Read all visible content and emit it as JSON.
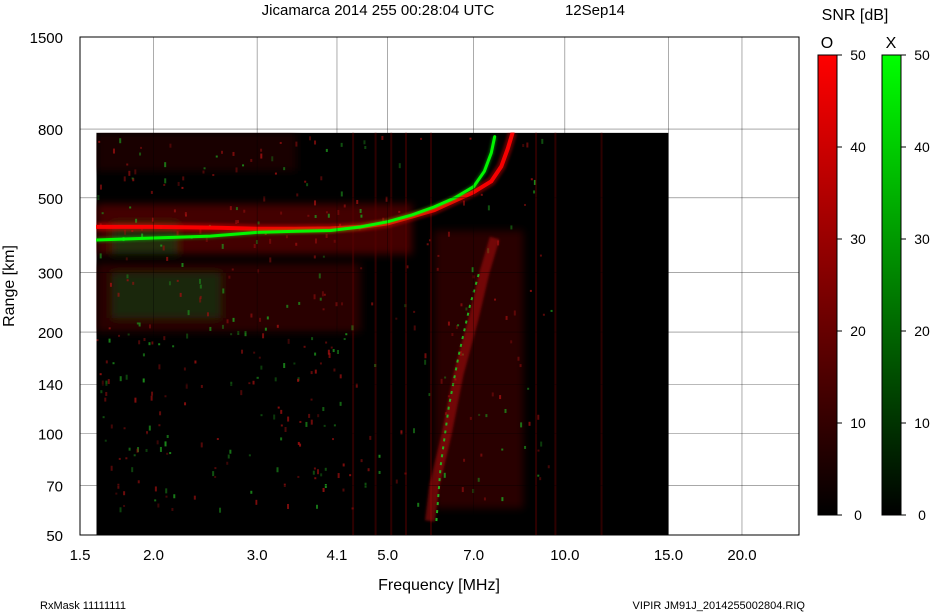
{
  "header": {
    "title": "Jicamarca 2014 255 00:28:04 UTC",
    "date": "12Sep14",
    "snr_label": "SNR [dB]"
  },
  "footer": {
    "rxmask": "RxMask 11111111",
    "file": "VIPIR  JM91J_2014255002804.RIQ"
  },
  "colors": {
    "o_mode": "#ff0000",
    "x_mode": "#00ff00",
    "background": "#000000",
    "grid": "#000000"
  },
  "chart_data": {
    "type": "heatmap",
    "title": "Jicamarca 2014 255 00:28:04 UTC",
    "xlabel": "Frequency [MHz]",
    "ylabel": "Range [km]",
    "x_scale": "log",
    "y_scale": "log",
    "xlim": [
      1.5,
      25
    ],
    "ylim": [
      50,
      1500
    ],
    "x_ticks": [
      "1.5",
      "2.0",
      "3.0",
      "4.1",
      "5.0",
      "7.0",
      "10.0",
      "15.0",
      "20.0"
    ],
    "y_ticks": [
      "1500",
      "800",
      "500",
      "300",
      "200",
      "140",
      "100",
      "70",
      "50"
    ],
    "data_extent": {
      "freq_mhz": [
        1.6,
        15.0
      ],
      "range_km": [
        50,
        780
      ]
    },
    "grid": true,
    "series": [
      {
        "name": "O",
        "color": "#ff0000",
        "trace": [
          [
            1.6,
            410
          ],
          [
            2.0,
            410
          ],
          [
            2.5,
            408
          ],
          [
            3.0,
            405
          ],
          [
            3.5,
            405
          ],
          [
            4.0,
            406
          ],
          [
            4.5,
            410
          ],
          [
            5.0,
            420
          ],
          [
            5.5,
            440
          ],
          [
            6.0,
            460
          ],
          [
            6.5,
            490
          ],
          [
            7.0,
            520
          ],
          [
            7.5,
            560
          ],
          [
            7.8,
            620
          ],
          [
            8.0,
            700
          ],
          [
            8.15,
            780
          ]
        ]
      },
      {
        "name": "X",
        "color": "#00ff00",
        "trace": [
          [
            1.6,
            375
          ],
          [
            2.0,
            380
          ],
          [
            2.5,
            385
          ],
          [
            3.0,
            395
          ],
          [
            3.5,
            398
          ],
          [
            4.0,
            400
          ],
          [
            4.5,
            410
          ],
          [
            5.0,
            425
          ],
          [
            5.5,
            445
          ],
          [
            6.0,
            470
          ],
          [
            6.5,
            500
          ],
          [
            7.0,
            540
          ],
          [
            7.3,
            600
          ],
          [
            7.5,
            680
          ],
          [
            7.6,
            760
          ]
        ]
      }
    ],
    "colorbars": [
      {
        "label": "O",
        "color": "#ff0000",
        "min": 0,
        "max": 50,
        "ticks": [
          "50",
          "40",
          "30",
          "20",
          "10",
          "0"
        ]
      },
      {
        "label": "X",
        "color": "#00ff00",
        "min": 0,
        "max": 50,
        "ticks": [
          "50",
          "40",
          "30",
          "20",
          "10",
          "0"
        ]
      }
    ]
  }
}
